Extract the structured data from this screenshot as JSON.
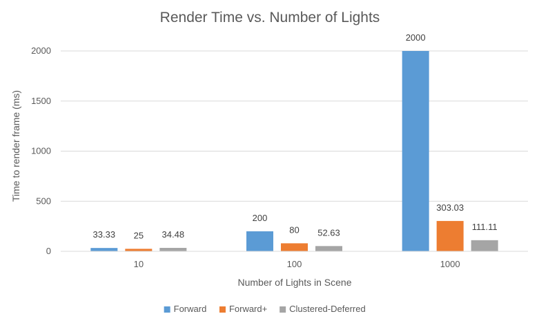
{
  "chart_data": {
    "type": "bar",
    "title": "Render Time vs. Number of Lights",
    "xlabel": "Number of Lights in Scene",
    "ylabel": "Time to render frame (ms)",
    "categories": [
      "10",
      "100",
      "1000"
    ],
    "series": [
      {
        "name": "Forward",
        "color": "#5b9bd5",
        "values": [
          33.33,
          200,
          2000
        ],
        "labels": [
          "33.33",
          "200",
          "2000"
        ]
      },
      {
        "name": "Forward+",
        "color": "#ed7d31",
        "values": [
          25,
          80,
          303.03
        ],
        "labels": [
          "25",
          "80",
          "303.03"
        ]
      },
      {
        "name": "Clustered-Deferred",
        "color": "#a5a5a5",
        "values": [
          34.48,
          52.63,
          111.11
        ],
        "labels": [
          "34.48",
          "52.63",
          "111.11"
        ]
      }
    ],
    "ylim": [
      0,
      2000
    ],
    "yticks": [
      "0",
      "500",
      "1000",
      "1500",
      "2000"
    ],
    "grid": true,
    "legend": "bottom"
  }
}
